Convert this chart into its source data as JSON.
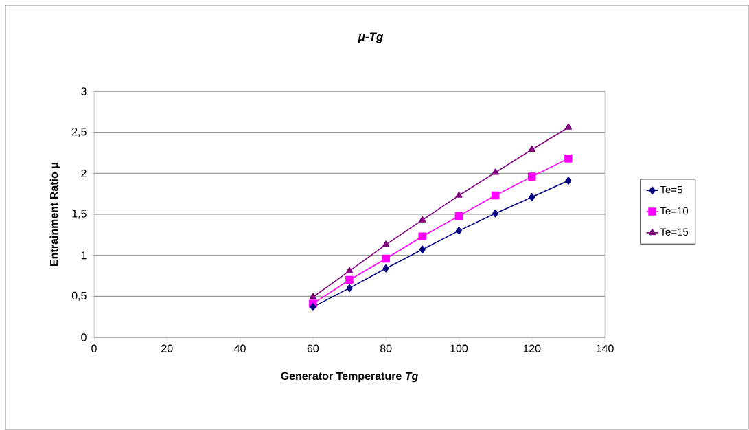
{
  "chart_data": {
    "type": "line",
    "title": "μ-Tg",
    "xlabel": "Generator Temperature *Tg*",
    "ylabel": "Entrainment Ratio μ",
    "x": [
      60,
      70,
      80,
      90,
      100,
      110,
      120,
      130
    ],
    "series": [
      {
        "name": "Te=5",
        "color": "#000080",
        "marker": "diamond",
        "values": [
          0.37,
          0.6,
          0.84,
          1.07,
          1.3,
          1.51,
          1.71,
          1.91
        ]
      },
      {
        "name": "Te=10",
        "color": "#ff00ff",
        "marker": "square",
        "values": [
          0.41,
          0.7,
          0.96,
          1.23,
          1.48,
          1.73,
          1.96,
          2.18
        ]
      },
      {
        "name": "Te=15",
        "color": "#800080",
        "marker": "triangle",
        "values": [
          0.49,
          0.81,
          1.13,
          1.43,
          1.73,
          2.01,
          2.29,
          2.56
        ]
      }
    ],
    "xlim": [
      0,
      140
    ],
    "xticks": [
      0,
      20,
      40,
      60,
      80,
      100,
      120,
      140
    ],
    "ylim": [
      0,
      3
    ],
    "yticks": [
      0,
      {
        "value": 0.5,
        "label": "0,5"
      },
      1,
      {
        "value": 1.5,
        "label": "1,5"
      },
      2,
      {
        "value": 2.5,
        "label": "2,5"
      },
      3
    ],
    "grid": "y",
    "legend": "right"
  }
}
